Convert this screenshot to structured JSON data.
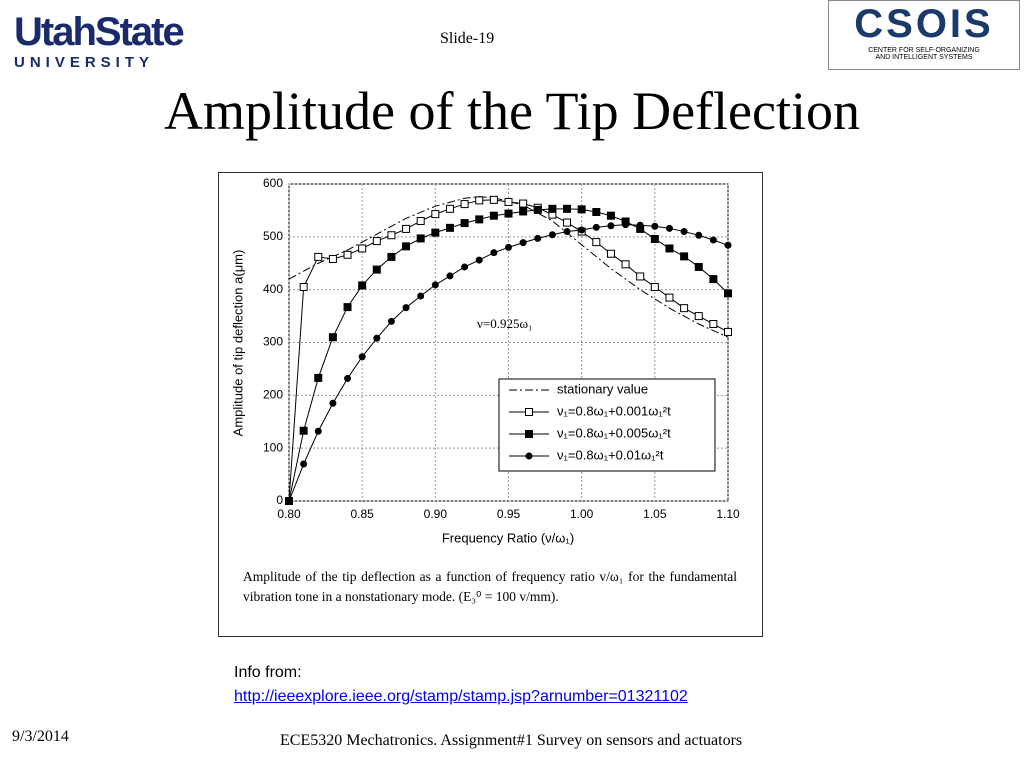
{
  "header": {
    "logo_left": "UtahState",
    "logo_left_sub": "UNIVERSITY",
    "slide_number": "Slide-19",
    "title": "Amplitude of the Tip Deflection",
    "logo_right": "CSOIS",
    "logo_right_sub": "CENTER FOR SELF-ORGANIZING AND INTELLIGENT SYSTEMS"
  },
  "chart_data": {
    "type": "line",
    "x_label": "Frequency Ratio (ν/ω₁)",
    "y_label": "Amplitude of tip deflection a(μm)",
    "annotation": "ν=0.925ω₁",
    "xlim": [
      0.8,
      1.1
    ],
    "xticks": [
      {
        "value": 0.8,
        "label": "0.80"
      },
      {
        "value": 0.85,
        "label": "0.85"
      },
      {
        "value": 0.9,
        "label": "0.90"
      },
      {
        "value": 0.95,
        "label": "0.95"
      },
      {
        "value": 1.0,
        "label": "1.00"
      },
      {
        "value": 1.05,
        "label": "1.05"
      },
      {
        "value": 1.1,
        "label": "1.10"
      }
    ],
    "ylim": [
      0,
      600
    ],
    "yticks": [
      0,
      100,
      200,
      300,
      400,
      500,
      600
    ],
    "grid": true,
    "legend": "lower right",
    "series": [
      {
        "name": "stationary value",
        "color": "#000000",
        "style": "dash-dot",
        "marker": "none",
        "x": [
          0.8,
          0.82,
          0.84,
          0.86,
          0.88,
          0.9,
          0.92,
          0.93,
          0.94,
          0.96,
          0.98,
          1.0,
          1.02,
          1.04,
          1.06,
          1.08,
          1.1
        ],
        "values": [
          420,
          450,
          475,
          505,
          535,
          558,
          573,
          576,
          574,
          560,
          530,
          485,
          440,
          400,
          365,
          335,
          310
        ]
      },
      {
        "name": "ν₁=0.8ω₁+0.001ω₁²t",
        "color": "#000000",
        "style": "solid",
        "marker": "open-square",
        "x": [
          0.8,
          0.81,
          0.82,
          0.83,
          0.84,
          0.85,
          0.86,
          0.87,
          0.88,
          0.89,
          0.9,
          0.91,
          0.92,
          0.93,
          0.94,
          0.95,
          0.96,
          0.97,
          0.98,
          0.99,
          1.0,
          1.01,
          1.02,
          1.03,
          1.04,
          1.05,
          1.06,
          1.07,
          1.08,
          1.09,
          1.1
        ],
        "values": [
          0,
          405,
          462,
          458,
          466,
          478,
          492,
          503,
          515,
          530,
          543,
          553,
          562,
          569,
          570,
          566,
          563,
          555,
          542,
          527,
          510,
          490,
          468,
          448,
          425,
          405,
          385,
          365,
          350,
          335,
          320
        ]
      },
      {
        "name": "ν₁=0.8ω₁+0.005ω₁²t",
        "color": "#000000",
        "style": "solid",
        "marker": "square",
        "x": [
          0.8,
          0.81,
          0.82,
          0.83,
          0.84,
          0.85,
          0.86,
          0.87,
          0.88,
          0.89,
          0.9,
          0.91,
          0.92,
          0.93,
          0.94,
          0.95,
          0.96,
          0.97,
          0.98,
          0.99,
          1.0,
          1.01,
          1.02,
          1.03,
          1.04,
          1.05,
          1.06,
          1.07,
          1.08,
          1.09,
          1.1
        ],
        "values": [
          0,
          133,
          233,
          310,
          367,
          408,
          438,
          462,
          482,
          497,
          508,
          517,
          526,
          533,
          540,
          544,
          548,
          551,
          553,
          553,
          552,
          547,
          540,
          529,
          515,
          496,
          478,
          463,
          443,
          420,
          393
        ]
      },
      {
        "name": "ν₁=0.8ω₁+0.01ω₁²t",
        "color": "#000000",
        "style": "solid",
        "marker": "circle",
        "x": [
          0.8,
          0.81,
          0.82,
          0.83,
          0.84,
          0.85,
          0.86,
          0.87,
          0.88,
          0.89,
          0.9,
          0.91,
          0.92,
          0.93,
          0.94,
          0.95,
          0.96,
          0.97,
          0.98,
          0.99,
          1.0,
          1.01,
          1.02,
          1.03,
          1.04,
          1.05,
          1.06,
          1.07,
          1.08,
          1.09,
          1.1
        ],
        "values": [
          0,
          70,
          132,
          185,
          232,
          273,
          308,
          340,
          366,
          388,
          409,
          426,
          443,
          456,
          470,
          480,
          489,
          497,
          504,
          510,
          513,
          518,
          521,
          523,
          522,
          520,
          516,
          510,
          503,
          494,
          484
        ]
      }
    ]
  },
  "caption": "Amplitude of the tip deflection as a function of frequency ratio v/ω₁ for the fundamental vibration tone in a nonstationary mode. (E₃⁰ = 100 v/mm).",
  "footer": {
    "info_label": "Info from:",
    "link": "http://ieeexplore.ieee.org/stamp/stamp.jsp?arnumber=01321102",
    "date": "9/3/2014",
    "course": "ECE5320 Mechatronics. Assignment#1 Survey on sensors and actuators"
  }
}
